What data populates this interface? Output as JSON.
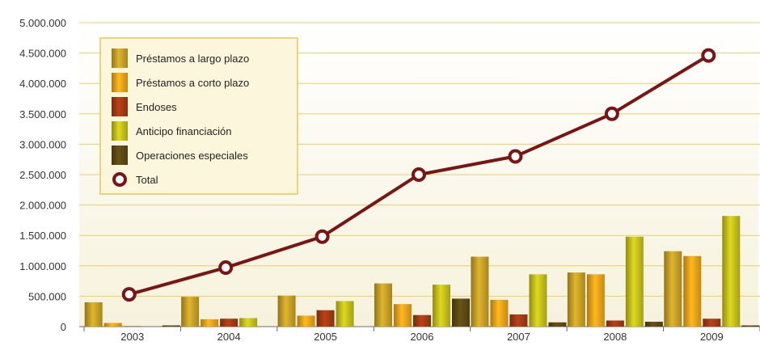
{
  "chart_data": {
    "type": "bar",
    "categories": [
      "2003",
      "2004",
      "2005",
      "2006",
      "2007",
      "2008",
      "2009"
    ],
    "ylim": [
      0,
      5000000
    ],
    "yticks": [
      {
        "value": 0,
        "label": "0"
      },
      {
        "value": 500000,
        "label": "500.000"
      },
      {
        "value": 1000000,
        "label": "1.000.000"
      },
      {
        "value": 1500000,
        "label": "1.500.000"
      },
      {
        "value": 2000000,
        "label": "2.000.000"
      },
      {
        "value": 2500000,
        "label": "2.500.000"
      },
      {
        "value": 3000000,
        "label": "3.000.000"
      },
      {
        "value": 3500000,
        "label": "3.500.000"
      },
      {
        "value": 4000000,
        "label": "4.000.000"
      },
      {
        "value": 4500000,
        "label": "4.500.000"
      },
      {
        "value": 5000000,
        "label": "5.000.000"
      }
    ],
    "grid": true,
    "legend_position": "top-left",
    "series": [
      {
        "name": "Préstamos a largo plazo",
        "type": "bar",
        "color": "#c9a227",
        "values": [
          400000,
          490000,
          510000,
          710000,
          1150000,
          890000,
          1240000
        ]
      },
      {
        "name": "Préstamos a corto plazo",
        "type": "bar",
        "color": "#f2a51a",
        "values": [
          60000,
          120000,
          180000,
          370000,
          440000,
          860000,
          1160000
        ]
      },
      {
        "name": "Endoses",
        "type": "bar",
        "color": "#a63c14",
        "values": [
          5000,
          130000,
          270000,
          190000,
          200000,
          100000,
          130000
        ]
      },
      {
        "name": "Anticipo financiación",
        "type": "bar",
        "color": "#c8c21c",
        "values": [
          0,
          140000,
          420000,
          690000,
          860000,
          1480000,
          1820000
        ]
      },
      {
        "name": "Operaciones especiales",
        "type": "bar",
        "color": "#5e4a14",
        "values": [
          20000,
          0,
          0,
          460000,
          70000,
          80000,
          20000
        ]
      },
      {
        "name": "Total",
        "type": "line",
        "color": "#7a1515",
        "values": [
          530000,
          970000,
          1480000,
          2500000,
          2800000,
          3500000,
          4460000
        ]
      }
    ]
  }
}
